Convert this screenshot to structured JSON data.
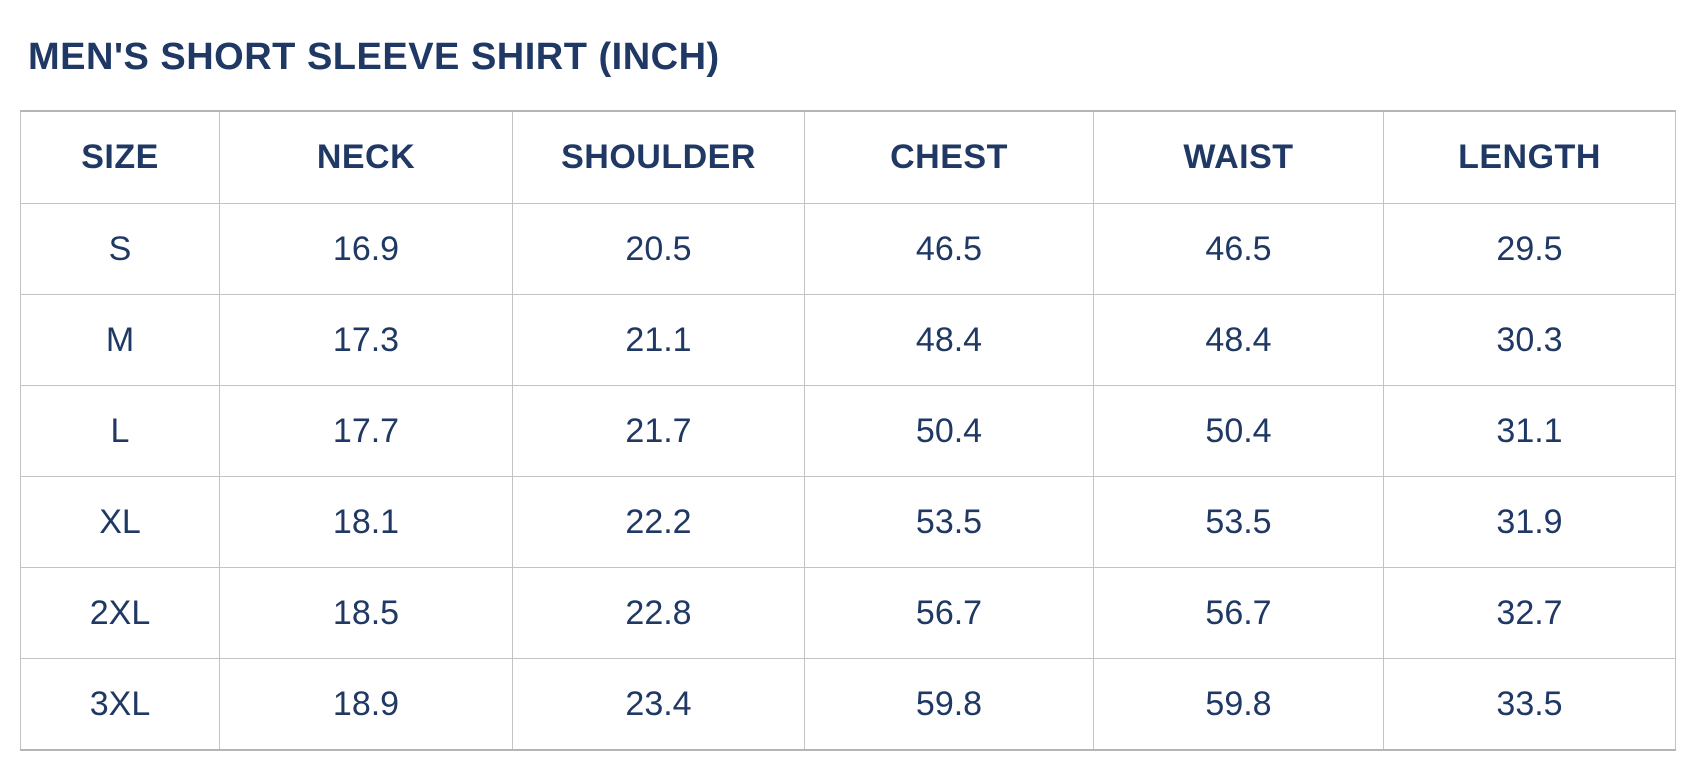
{
  "title": "MEN'S SHORT SLEEVE SHIRT (INCH)",
  "colors": {
    "text_navy": "#1f3864",
    "border_gray": "#c3c3c3",
    "outer_border_gray": "#b5b5b5",
    "background": "#ffffff"
  },
  "chart_data": {
    "type": "table",
    "title": "MEN'S SHORT SLEEVE SHIRT (INCH)",
    "unit": "INCH",
    "columns": [
      "SIZE",
      "NECK",
      "SHOULDER",
      "CHEST",
      "WAIST",
      "LENGTH"
    ],
    "rows": [
      [
        "S",
        "16.9",
        "20.5",
        "46.5",
        "46.5",
        "29.5"
      ],
      [
        "M",
        "17.3",
        "21.1",
        "48.4",
        "48.4",
        "30.3"
      ],
      [
        "L",
        "17.7",
        "21.7",
        "50.4",
        "50.4",
        "31.1"
      ],
      [
        "XL",
        "18.1",
        "22.2",
        "53.5",
        "53.5",
        "31.9"
      ],
      [
        "2XL",
        "18.5",
        "22.8",
        "56.7",
        "56.7",
        "32.7"
      ],
      [
        "3XL",
        "18.9",
        "23.4",
        "59.8",
        "59.8",
        "33.5"
      ]
    ]
  }
}
